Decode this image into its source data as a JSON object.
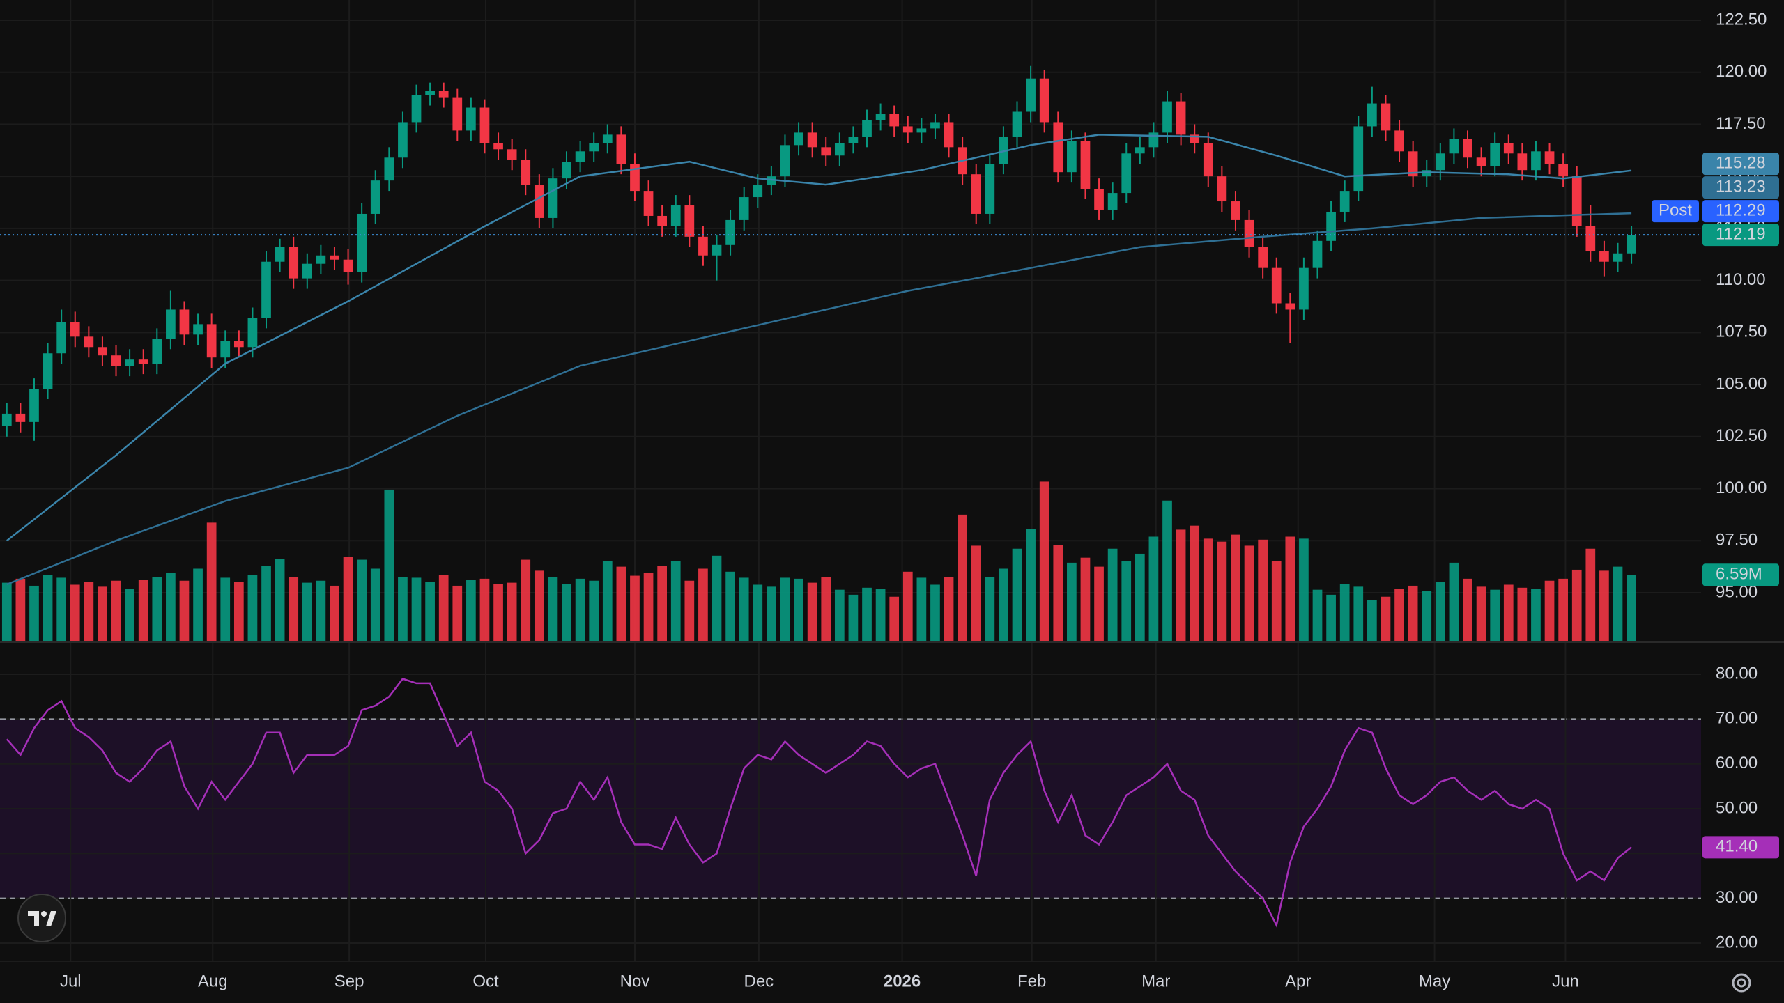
{
  "chart_data": [
    {
      "type": "candlestick",
      "xlim": [
        -0.5,
        124.1
      ],
      "ylim": [
        92.69,
        123.47
      ],
      "yticks": [
        {
          "value": 95,
          "label": "95.00"
        },
        {
          "value": 97.5,
          "label": "97.50"
        },
        {
          "value": 100,
          "label": "100.00"
        },
        {
          "value": 102.5,
          "label": "102.50"
        },
        {
          "value": 105,
          "label": "105.00"
        },
        {
          "value": 107.5,
          "label": "107.50"
        },
        {
          "value": 110,
          "label": "110.00"
        },
        {
          "value": 112.5,
          "label": "112.50"
        },
        {
          "value": 115,
          "label": "115.00"
        },
        {
          "value": 117.5,
          "label": "117.50"
        },
        {
          "value": 120,
          "label": "120.00"
        },
        {
          "value": 122.5,
          "label": "122.50"
        }
      ],
      "colors": {
        "up": "#089981",
        "down": "#f23645"
      },
      "last_price_color": "#089981",
      "open": [
        103.0,
        103.6,
        103.2,
        104.8,
        106.5,
        108.0,
        107.3,
        106.8,
        106.4,
        105.9,
        106.2,
        106.0,
        107.2,
        108.6,
        107.4,
        107.9,
        106.3,
        107.1,
        106.8,
        108.2,
        110.9,
        111.6,
        110.1,
        110.8,
        111.2,
        111.0,
        110.4,
        113.2,
        114.8,
        115.9,
        117.6,
        118.9,
        119.1,
        118.8,
        117.2,
        118.3,
        116.6,
        116.3,
        115.8,
        114.6,
        113.0,
        114.9,
        115.7,
        116.2,
        116.6,
        117.0,
        115.6,
        114.3,
        113.1,
        112.6,
        113.6,
        112.1,
        111.2,
        111.7,
        112.9,
        114.0,
        114.6,
        115.0,
        116.5,
        117.1,
        116.4,
        116.0,
        116.6,
        116.9,
        117.7,
        118.0,
        117.4,
        117.1,
        117.3,
        117.6,
        116.4,
        115.1,
        113.2,
        115.6,
        116.9,
        118.1,
        119.7,
        117.6,
        115.2,
        116.7,
        114.4,
        113.4,
        114.2,
        116.1,
        116.4,
        117.1,
        118.6,
        117.0,
        116.6,
        115.0,
        113.8,
        112.9,
        111.6,
        110.6,
        108.9,
        108.6,
        110.6,
        111.9,
        113.3,
        114.3,
        117.4,
        118.5,
        117.2,
        116.2,
        115.0,
        115.3,
        116.1,
        116.8,
        115.9,
        115.5,
        116.6,
        116.1,
        115.3,
        116.2,
        115.6,
        115.0,
        112.6,
        111.4,
        110.9,
        111.3
      ],
      "high": [
        104.1,
        104.1,
        105.3,
        107.0,
        108.6,
        108.5,
        107.8,
        107.3,
        106.9,
        106.7,
        106.7,
        107.7,
        109.5,
        109.0,
        108.4,
        108.4,
        107.6,
        107.6,
        108.7,
        111.4,
        112.0,
        112.1,
        111.3,
        111.7,
        111.6,
        111.5,
        113.7,
        115.3,
        116.4,
        118.1,
        119.4,
        119.5,
        119.5,
        119.2,
        118.8,
        118.7,
        117.1,
        116.8,
        116.3,
        115.1,
        115.4,
        116.2,
        116.7,
        117.1,
        117.5,
        117.4,
        116.1,
        114.8,
        113.6,
        114.1,
        114.1,
        112.6,
        112.2,
        113.4,
        114.5,
        115.1,
        115.5,
        117.0,
        117.6,
        117.6,
        116.9,
        117.1,
        117.4,
        118.2,
        118.5,
        118.4,
        117.9,
        117.8,
        118.0,
        118.0,
        116.9,
        115.6,
        116.1,
        117.4,
        118.6,
        120.3,
        120.1,
        118.1,
        117.2,
        117.1,
        114.9,
        114.7,
        116.6,
        116.9,
        117.6,
        119.1,
        119.0,
        117.5,
        117.1,
        115.5,
        114.3,
        113.4,
        112.1,
        111.1,
        109.4,
        111.1,
        112.4,
        113.8,
        114.8,
        117.9,
        119.3,
        118.9,
        117.7,
        116.7,
        115.8,
        116.6,
        117.3,
        117.2,
        116.4,
        117.1,
        117.0,
        116.6,
        116.7,
        116.6,
        116.1,
        115.5,
        113.6,
        111.9,
        111.8,
        112.6
      ],
      "low": [
        102.5,
        102.7,
        102.3,
        104.3,
        106.0,
        106.8,
        106.3,
        105.9,
        105.4,
        105.4,
        105.5,
        105.5,
        106.7,
        106.9,
        106.9,
        105.8,
        105.8,
        106.3,
        106.3,
        107.7,
        110.4,
        109.6,
        109.6,
        110.3,
        110.5,
        109.8,
        109.9,
        112.7,
        114.3,
        115.4,
        117.1,
        118.4,
        118.3,
        116.7,
        116.7,
        116.1,
        115.8,
        115.3,
        114.1,
        112.5,
        112.5,
        114.4,
        115.2,
        115.7,
        116.1,
        115.1,
        113.8,
        112.6,
        112.1,
        112.1,
        111.6,
        110.7,
        110.0,
        111.2,
        112.4,
        113.5,
        114.1,
        114.5,
        116.0,
        115.9,
        115.5,
        115.5,
        116.1,
        116.4,
        117.2,
        116.9,
        116.6,
        116.6,
        116.8,
        115.9,
        114.6,
        112.7,
        112.7,
        115.1,
        116.4,
        117.6,
        117.1,
        114.7,
        114.7,
        113.9,
        112.9,
        112.9,
        113.7,
        115.6,
        115.9,
        116.6,
        116.5,
        116.1,
        114.5,
        113.3,
        112.4,
        111.1,
        110.1,
        108.4,
        107.0,
        108.1,
        110.1,
        111.4,
        112.8,
        113.8,
        116.9,
        116.7,
        115.7,
        114.5,
        114.5,
        114.8,
        115.6,
        115.4,
        115.0,
        115.0,
        115.6,
        114.8,
        114.8,
        115.1,
        114.5,
        112.1,
        110.9,
        110.2,
        110.4,
        110.8
      ],
      "close": [
        103.6,
        103.2,
        104.8,
        106.5,
        108.0,
        107.3,
        106.8,
        106.4,
        105.9,
        106.2,
        106.0,
        107.2,
        108.6,
        107.4,
        107.9,
        106.3,
        107.1,
        106.8,
        108.2,
        110.9,
        111.6,
        110.1,
        110.8,
        111.2,
        111.0,
        110.4,
        113.2,
        114.8,
        115.9,
        117.6,
        118.9,
        119.1,
        118.8,
        117.2,
        118.3,
        116.6,
        116.3,
        115.8,
        114.6,
        113.0,
        114.9,
        115.7,
        116.2,
        116.6,
        117.0,
        115.6,
        114.3,
        113.1,
        112.6,
        113.6,
        112.1,
        111.2,
        111.7,
        112.9,
        114.0,
        114.6,
        115.0,
        116.5,
        117.1,
        116.4,
        116.0,
        116.6,
        116.9,
        117.7,
        118.0,
        117.4,
        117.1,
        117.3,
        117.6,
        116.4,
        115.1,
        113.2,
        115.6,
        116.9,
        118.1,
        119.7,
        117.6,
        115.2,
        116.7,
        114.4,
        113.4,
        114.2,
        116.1,
        116.4,
        117.1,
        118.6,
        117.0,
        116.6,
        115.0,
        113.8,
        112.9,
        111.6,
        110.6,
        108.9,
        108.6,
        110.6,
        111.9,
        113.3,
        114.3,
        117.4,
        118.5,
        117.2,
        116.2,
        115.0,
        115.3,
        116.1,
        116.8,
        115.9,
        115.5,
        116.6,
        116.1,
        115.3,
        116.2,
        115.6,
        115.0,
        112.6,
        111.4,
        110.9,
        111.3,
        112.19
      ],
      "series": [
        {
          "color": "#3a84aa",
          "x": [
            0,
            8,
            16,
            25,
            30,
            35,
            42,
            50,
            55,
            60,
            67,
            75,
            80,
            88,
            93,
            98,
            104,
            110,
            114,
            119
          ],
          "values": [
            97.5,
            101.6,
            106.0,
            109.0,
            110.8,
            112.6,
            115.0,
            115.7,
            114.9,
            114.6,
            115.3,
            116.5,
            117.0,
            116.9,
            116.0,
            115.0,
            115.2,
            115.1,
            114.9,
            115.28
          ]
        },
        {
          "color": "#2f6f93",
          "x": [
            0,
            8,
            16,
            25,
            33,
            42,
            50,
            58,
            66,
            75,
            83,
            92,
            100,
            108,
            119
          ],
          "values": [
            95.4,
            97.5,
            99.4,
            101.0,
            103.5,
            105.9,
            107.1,
            108.3,
            109.5,
            110.6,
            111.6,
            112.1,
            112.5,
            113.0,
            113.23
          ]
        }
      ],
      "post_market": {
        "label": "Post",
        "price": 112.29,
        "color": "#2962ff"
      },
      "volume": {
        "ylim": [
          0,
          64
        ],
        "last_label": "6.59M",
        "values": [
          5.8,
          6.2,
          5.5,
          6.6,
          6.3,
          5.6,
          5.9,
          5.4,
          6.0,
          5.2,
          6.1,
          6.4,
          6.8,
          6.0,
          7.2,
          11.8,
          6.3,
          5.9,
          6.6,
          7.5,
          8.2,
          6.4,
          5.8,
          6.0,
          5.5,
          8.4,
          8.1,
          7.2,
          15.1,
          6.4,
          6.3,
          5.9,
          6.6,
          5.5,
          6.1,
          6.2,
          5.7,
          5.8,
          8.1,
          7.0,
          6.4,
          5.7,
          6.2,
          6.0,
          8.0,
          7.4,
          6.5,
          6.8,
          7.5,
          8.0,
          6.0,
          7.2,
          8.5,
          6.9,
          6.3,
          5.6,
          5.4,
          6.3,
          6.2,
          5.8,
          6.4,
          5.1,
          4.6,
          5.3,
          5.2,
          4.4,
          6.9,
          6.3,
          5.6,
          6.4,
          12.6,
          9.5,
          6.4,
          7.2,
          9.2,
          11.2,
          15.9,
          9.6,
          7.8,
          8.3,
          7.4,
          9.2,
          8.0,
          8.7,
          10.4,
          14.0,
          11.1,
          11.5,
          10.2,
          9.9,
          10.6,
          9.5,
          10.1,
          8.0,
          10.4,
          10.2,
          5.1,
          4.6,
          5.7,
          5.4,
          4.1,
          4.4,
          5.2,
          5.5,
          5.0,
          5.9,
          7.8,
          6.2,
          5.4,
          5.1,
          5.6,
          5.3,
          5.2,
          6.0,
          6.2,
          7.1,
          9.2,
          7.0,
          7.4,
          6.59
        ]
      }
    },
    {
      "type": "line",
      "xlim": [
        -0.5,
        124.1
      ],
      "ylim": [
        15.96,
        87.0
      ],
      "yticks": [
        {
          "value": 20,
          "label": "20.00"
        },
        {
          "value": 30,
          "label": "30.00"
        },
        {
          "value": 40,
          "label": "40.00"
        },
        {
          "value": 50,
          "label": "50.00"
        },
        {
          "value": 60,
          "label": "60.00"
        },
        {
          "value": 70,
          "label": "70.00"
        },
        {
          "value": 80,
          "label": "80.00"
        }
      ],
      "xticks": [
        {
          "value": 4.67,
          "label": "Jul"
        },
        {
          "value": 15.08,
          "label": "Aug"
        },
        {
          "value": 25.08,
          "label": "Sep"
        },
        {
          "value": 35.08,
          "label": "Oct"
        },
        {
          "value": 46.0,
          "label": "Nov"
        },
        {
          "value": 55.08,
          "label": "Dec"
        },
        {
          "value": 65.58,
          "label": "2026"
        },
        {
          "value": 75.08,
          "label": "Feb"
        },
        {
          "value": 84.17,
          "label": "Mar"
        },
        {
          "value": 94.58,
          "label": "Apr"
        },
        {
          "value": 104.58,
          "label": "May"
        },
        {
          "value": 114.17,
          "label": "Jun"
        }
      ],
      "band": [
        30,
        70
      ],
      "band_color": "#1d1027",
      "color": "#a52fb8",
      "last_label": "41.40",
      "values": [
        65.5,
        62,
        68,
        72,
        74,
        68,
        66,
        63,
        58,
        56,
        59,
        63,
        65,
        55,
        50,
        56,
        52,
        56,
        60,
        67,
        67,
        58,
        62,
        62,
        62,
        64,
        72,
        73,
        75,
        79,
        78,
        78,
        71,
        64,
        67,
        56,
        54,
        50,
        40,
        43,
        49,
        50,
        56,
        52,
        57,
        47,
        42,
        42,
        41,
        48,
        42,
        38,
        40,
        50,
        59,
        62,
        61,
        65,
        62,
        60,
        58,
        60,
        62,
        65,
        64,
        60,
        57,
        59,
        60,
        52,
        44,
        35,
        52,
        58,
        62,
        65,
        54,
        47,
        53,
        44,
        42,
        47,
        53,
        55,
        57,
        60,
        54,
        52,
        44,
        40,
        36,
        33,
        30,
        24,
        38,
        46,
        50,
        55,
        63,
        68,
        67,
        59,
        53,
        51,
        53,
        56,
        57,
        54,
        52,
        54,
        51,
        50,
        52,
        50,
        40,
        34,
        36,
        34,
        39,
        41.4
      ]
    }
  ]
}
